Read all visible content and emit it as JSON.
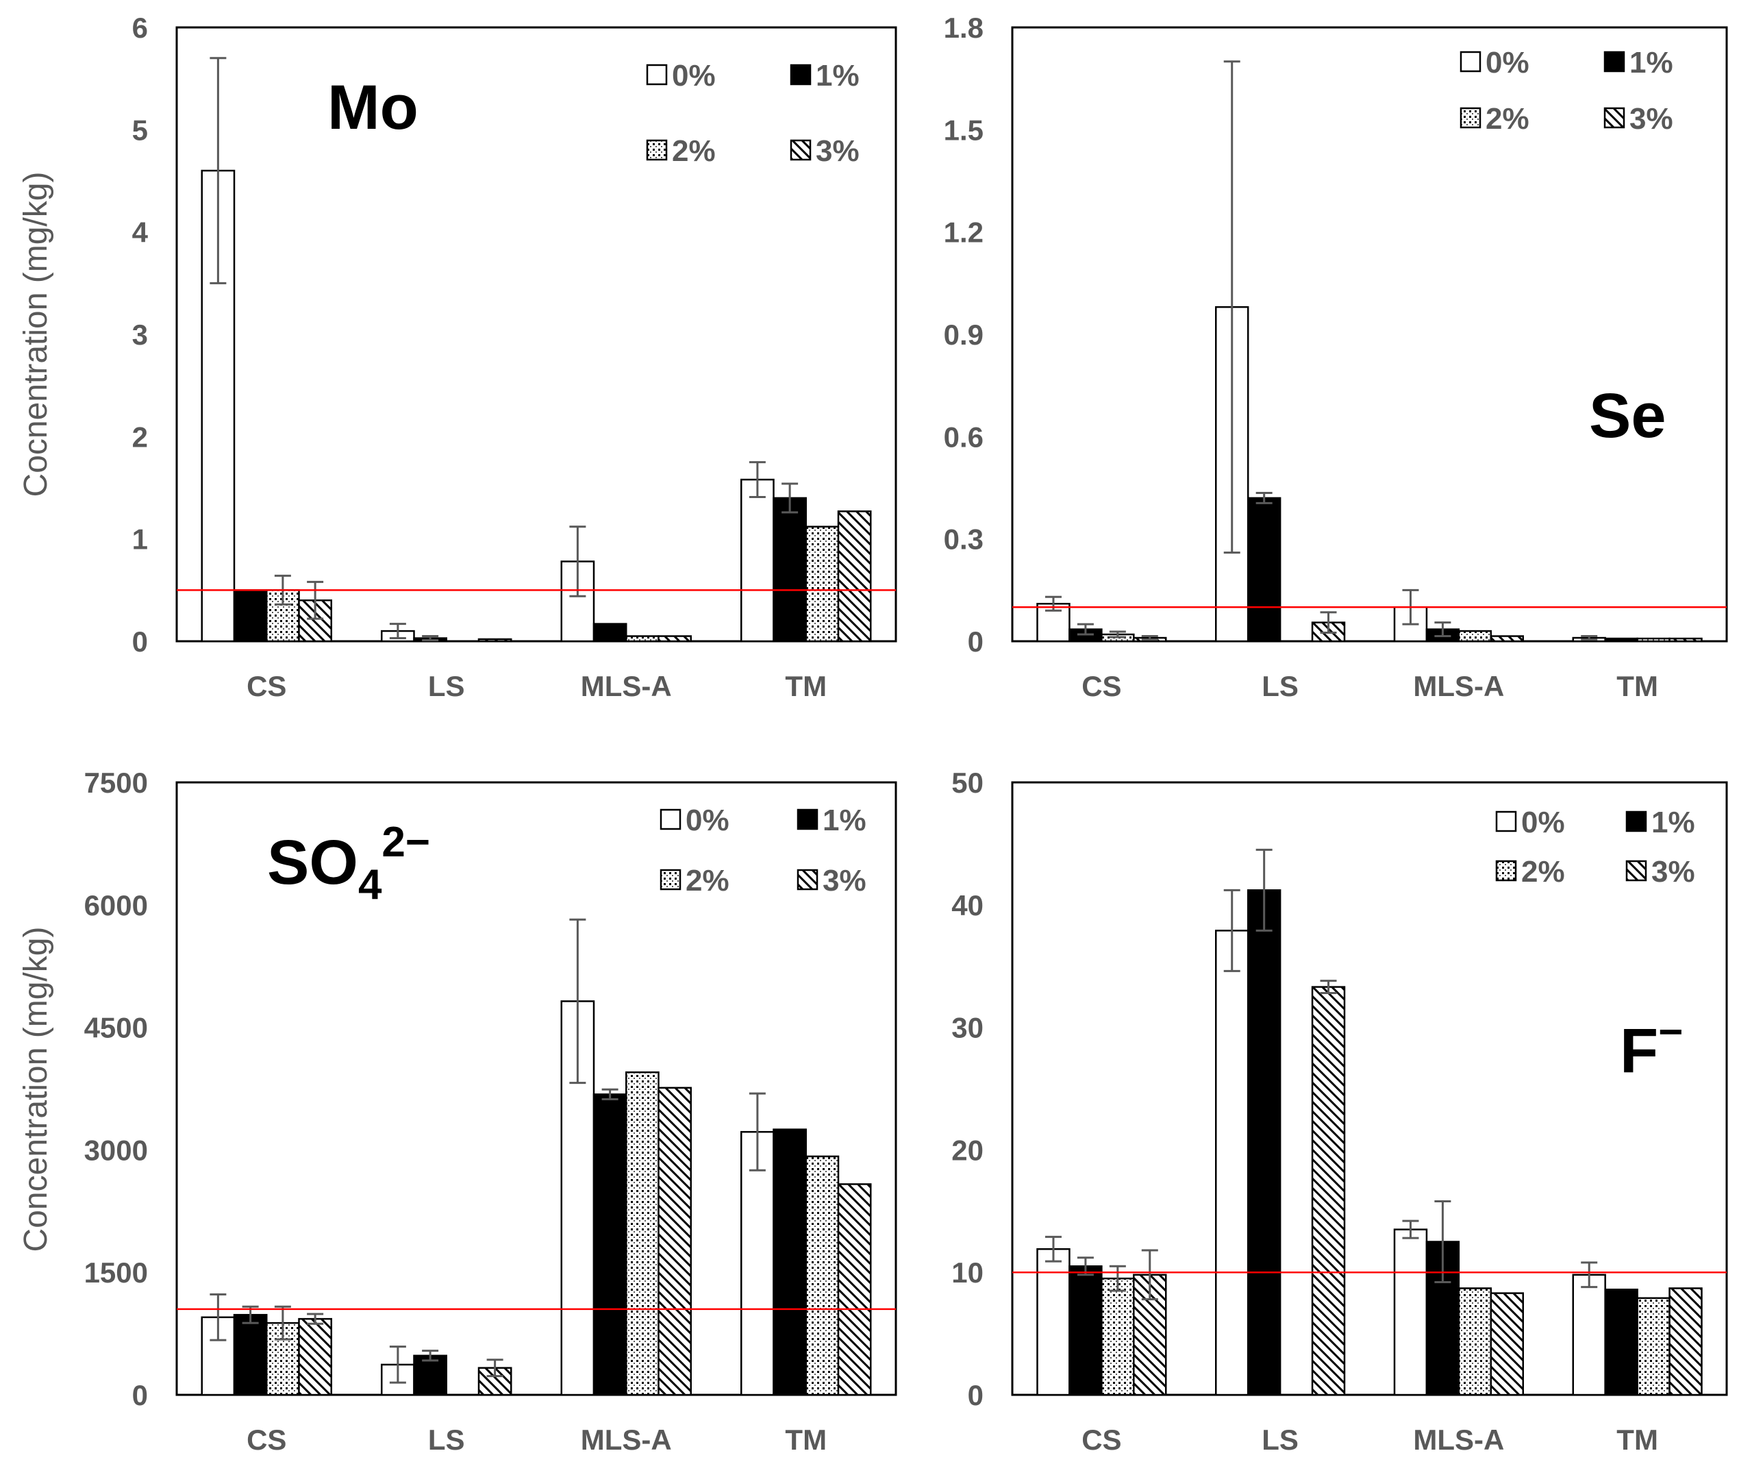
{
  "colors": {
    "axis": "#000000",
    "text": "#595959",
    "threshold": "#ff0000",
    "errorbar": "#595959",
    "bar_edge": "#000000"
  },
  "legend": [
    {
      "label": "0%",
      "pattern": "white"
    },
    {
      "label": "1%",
      "pattern": "black"
    },
    {
      "label": "2%",
      "pattern": "dots"
    },
    {
      "label": "3%",
      "pattern": "hatch"
    }
  ],
  "chart_data": [
    {
      "type": "bar",
      "title": "Mo",
      "title_superscript": "",
      "ylabel": "Cocnentration (mg/kg)",
      "categories": [
        "CS",
        "LS",
        "MLS-A",
        "TM"
      ],
      "ylim": [
        0,
        6
      ],
      "yticks": [
        "0",
        "1",
        "2",
        "3",
        "4",
        "5",
        "6"
      ],
      "threshold": 0.5,
      "series": [
        {
          "name": "0%",
          "values": [
            4.6,
            0.1,
            0.78,
            1.58
          ],
          "errors": [
            1.1,
            0.07,
            0.34,
            0.17
          ]
        },
        {
          "name": "1%",
          "values": [
            0.5,
            0.03,
            0.17,
            1.4
          ],
          "errors": [
            0,
            0.02,
            0,
            0.14
          ]
        },
        {
          "name": "2%",
          "values": [
            0.5,
            0.0,
            0.05,
            1.12
          ],
          "errors": [
            0.14,
            0,
            0,
            0
          ]
        },
        {
          "name": "3%",
          "values": [
            0.4,
            0.02,
            0.05,
            1.27
          ],
          "errors": [
            0.18,
            0,
            0,
            0
          ]
        }
      ]
    },
    {
      "type": "bar",
      "title": "Se",
      "title_superscript": "",
      "ylabel": "",
      "categories": [
        "CS",
        "LS",
        "MLS-A",
        "TM"
      ],
      "ylim": [
        0,
        1.8
      ],
      "yticks": [
        "0",
        "0.3",
        "0.6",
        "0.9",
        "1.2",
        "1.5",
        "1.8"
      ],
      "threshold": 0.1,
      "series": [
        {
          "name": "0%",
          "values": [
            0.11,
            0.98,
            0.1,
            0.01
          ],
          "errors": [
            0.02,
            0.72,
            0.05,
            0.005
          ]
        },
        {
          "name": "1%",
          "values": [
            0.035,
            0.42,
            0.035,
            0.008
          ],
          "errors": [
            0.015,
            0.015,
            0.02,
            0
          ]
        },
        {
          "name": "2%",
          "values": [
            0.02,
            0.0,
            0.03,
            0.008
          ],
          "errors": [
            0.008,
            0,
            0,
            0
          ]
        },
        {
          "name": "3%",
          "values": [
            0.01,
            0.055,
            0.015,
            0.008
          ],
          "errors": [
            0.005,
            0.03,
            0,
            0
          ]
        }
      ]
    },
    {
      "type": "bar",
      "title": "SO",
      "title_superscript": "2−",
      "title_subscript": "4",
      "ylabel": "Concentration (mg/kg)",
      "categories": [
        "CS",
        "LS",
        "MLS-A",
        "TM"
      ],
      "ylim": [
        0,
        7500
      ],
      "yticks": [
        "0",
        "1500",
        "3000",
        "4500",
        "6000",
        "7500"
      ],
      "threshold": 1050,
      "series": [
        {
          "name": "0%",
          "values": [
            950,
            370,
            4820,
            3220
          ],
          "errors": [
            280,
            220,
            1000,
            470
          ]
        },
        {
          "name": "1%",
          "values": [
            980,
            480,
            3680,
            3250
          ],
          "errors": [
            100,
            60,
            60,
            0
          ]
        },
        {
          "name": "2%",
          "values": [
            880,
            0,
            3950,
            2920
          ],
          "errors": [
            200,
            0,
            0,
            0
          ]
        },
        {
          "name": "3%",
          "values": [
            930,
            330,
            3760,
            2580
          ],
          "errors": [
            60,
            100,
            0,
            0
          ]
        }
      ]
    },
    {
      "type": "bar",
      "title": "F",
      "title_superscript": "−",
      "ylabel": "",
      "categories": [
        "CS",
        "LS",
        "MLS-A",
        "TM"
      ],
      "ylim": [
        0,
        50
      ],
      "yticks": [
        "0",
        "10",
        "20",
        "30",
        "40",
        "50"
      ],
      "threshold": 10,
      "series": [
        {
          "name": "0%",
          "values": [
            11.9,
            37.9,
            13.5,
            9.8
          ],
          "errors": [
            1.0,
            3.3,
            0.7,
            1.0
          ]
        },
        {
          "name": "1%",
          "values": [
            10.5,
            41.2,
            12.5,
            8.6
          ],
          "errors": [
            0.7,
            3.3,
            3.3,
            0
          ]
        },
        {
          "name": "2%",
          "values": [
            9.5,
            0,
            8.7,
            7.9
          ],
          "errors": [
            1.0,
            0,
            0,
            0
          ]
        },
        {
          "name": "3%",
          "values": [
            9.8,
            33.3,
            8.3,
            8.7
          ],
          "errors": [
            2.0,
            0.5,
            0,
            0
          ]
        }
      ]
    }
  ]
}
